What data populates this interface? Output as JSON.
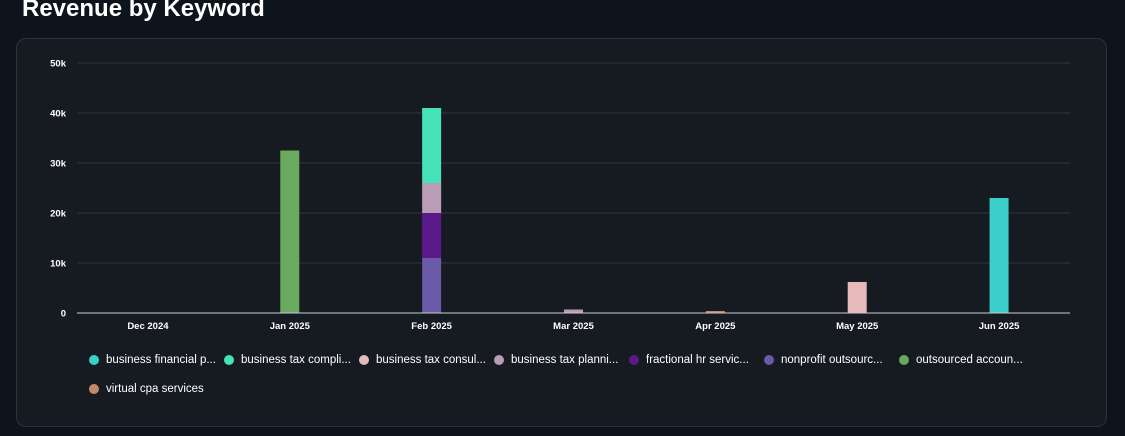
{
  "page": {
    "title": "Revenue by Keyword"
  },
  "legend": {
    "items": [
      {
        "label": "business financial p...",
        "color": "#3ccfc9"
      },
      {
        "label": "business tax compli...",
        "color": "#47e3b8"
      },
      {
        "label": "business tax consul...",
        "color": "#e6b9bb"
      },
      {
        "label": "business tax planni...",
        "color": "#b99db6"
      },
      {
        "label": "fractional hr servic...",
        "color": "#5b1a8a"
      },
      {
        "label": "nonprofit outsourc...",
        "color": "#6a5aa7"
      },
      {
        "label": "outsourced accoun...",
        "color": "#6aaa5e"
      },
      {
        "label": "virtual cpa services",
        "color": "#c48968"
      }
    ]
  },
  "chart_data": {
    "type": "bar",
    "stacked": true,
    "title": "Revenue by Keyword",
    "categories": [
      "Dec 2024",
      "Jan 2025",
      "Feb 2025",
      "Mar 2025",
      "Apr 2025",
      "May 2025",
      "Jun 2025"
    ],
    "ylim": [
      0,
      50000
    ],
    "yticks": [
      {
        "value": 0,
        "label": "0"
      },
      {
        "value": 10000,
        "label": "10k"
      },
      {
        "value": 20000,
        "label": "20k"
      },
      {
        "value": 30000,
        "label": "30k"
      },
      {
        "value": 40000,
        "label": "40k"
      },
      {
        "value": 50000,
        "label": "50k"
      }
    ],
    "grid": true,
    "legend_position": "bottom",
    "series": [
      {
        "name": "nonprofit outsourc...",
        "color": "#6a5aa7",
        "values": [
          0,
          0,
          11000,
          0,
          0,
          0,
          0
        ]
      },
      {
        "name": "fractional hr servic...",
        "color": "#5b1a8a",
        "values": [
          0,
          0,
          9000,
          0,
          0,
          0,
          0
        ]
      },
      {
        "name": "business tax planni...",
        "color": "#b99db6",
        "values": [
          0,
          0,
          6000,
          700,
          0,
          0,
          0
        ]
      },
      {
        "name": "business tax compli...",
        "color": "#47e3b8",
        "values": [
          0,
          0,
          15000,
          0,
          0,
          0,
          0
        ]
      },
      {
        "name": "business tax consul...",
        "color": "#e6b9bb",
        "values": [
          0,
          0,
          0,
          0,
          0,
          6200,
          0
        ]
      },
      {
        "name": "business financial p...",
        "color": "#3ccfc9",
        "values": [
          0,
          0,
          0,
          0,
          0,
          0,
          23000
        ]
      },
      {
        "name": "outsourced accoun...",
        "color": "#6aaa5e",
        "values": [
          0,
          32500,
          0,
          0,
          0,
          0,
          0
        ]
      },
      {
        "name": "virtual cpa services",
        "color": "#c48968",
        "values": [
          0,
          0,
          0,
          0,
          400,
          0,
          0
        ]
      }
    ]
  }
}
